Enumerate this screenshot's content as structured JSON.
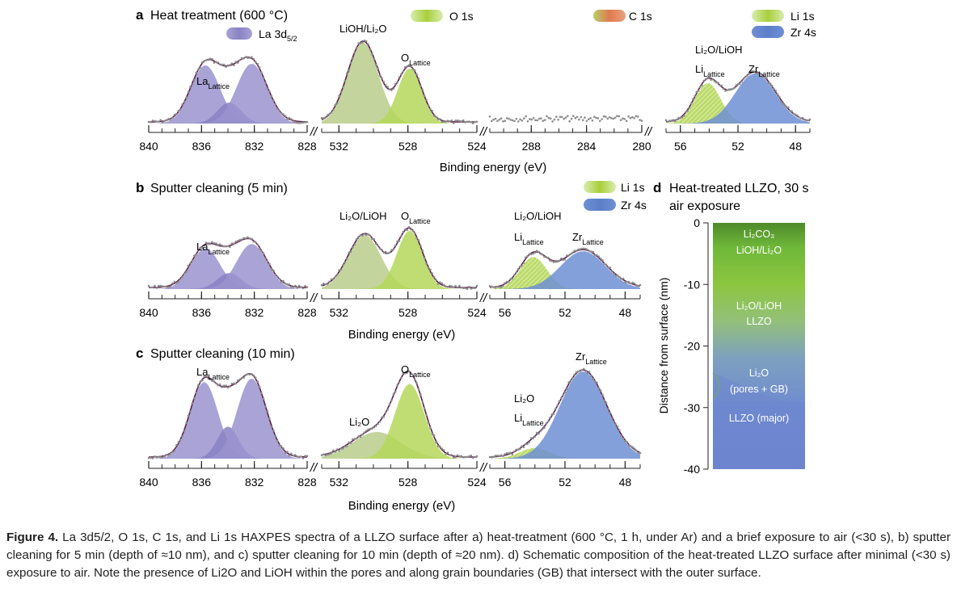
{
  "panels": {
    "a": {
      "letter": "a",
      "title": "Heat treatment (600 °C)"
    },
    "b": {
      "letter": "b",
      "title": "Sputter cleaning (5 min)"
    },
    "c": {
      "letter": "c",
      "title": "Sputter cleaning (10 min)"
    },
    "d": {
      "letter": "d",
      "title_line1": "Heat-treated LLZO, 30 s",
      "title_line2": "air exposure"
    }
  },
  "legend": {
    "la": {
      "label": "La 3d",
      "sub": "5/2",
      "color": "#8a82c4"
    },
    "o": {
      "label": "O 1s",
      "color": "#a8cf3a"
    },
    "c": {
      "label": "C 1s",
      "color": "#e07a4f"
    },
    "li": {
      "label": "Li 1s",
      "color": "#a8cf3a"
    },
    "zr": {
      "label": "Zr 4s",
      "color": "#5b7fc8"
    }
  },
  "labels": {
    "la_main": "La",
    "la_sub": "Lattice",
    "o_main": "O",
    "o_sub": "Lattice",
    "li_main": "Li",
    "li_sub": "Lattice",
    "zr_main": "Zr",
    "zr_sub": "Lattice",
    "lioh_li2o": "LiOH/Li₂O",
    "li2o_lioh": "Li₂O/LiOH",
    "li2o": "Li₂O"
  },
  "axes": {
    "xlabel": "Binding energy (eV)",
    "break_mark": "//"
  },
  "chart_data": {
    "type": "line",
    "xlabel": "Binding energy (eV)",
    "regions": [
      {
        "name": "La 3d5/2",
        "xlim": [
          840,
          828
        ],
        "ticks": [
          "840",
          "836",
          "832",
          "828"
        ]
      },
      {
        "name": "O 1s",
        "xlim": [
          533,
          524
        ],
        "ticks": [
          "532",
          "528",
          "524"
        ]
      },
      {
        "name": "C 1s",
        "xlim": [
          291,
          280
        ],
        "ticks": [
          "288",
          "284",
          "280"
        ]
      },
      {
        "name": "Li 1s / Zr 4s",
        "xlim": [
          57,
          47
        ],
        "ticks": [
          "56",
          "52",
          "48"
        ]
      }
    ],
    "spectra": {
      "a": {
        "La 3d5/2": [
          {
            "center": 835.7,
            "height": 0.72,
            "sigma": 1.1
          },
          {
            "center": 833.9,
            "height": 0.26,
            "sigma": 0.9
          },
          {
            "center": 832.2,
            "height": 0.74,
            "sigma": 1.15
          }
        ],
        "O 1s": [
          {
            "center": 530.6,
            "height": 1.0,
            "sigma": 0.9
          },
          {
            "center": 527.9,
            "height": 0.68,
            "sigma": 0.7
          }
        ],
        "C 1s": [],
        "Li 1s / Zr 4s": [
          {
            "center": 54.1,
            "height": 0.5,
            "sigma": 0.9
          },
          {
            "center": 50.8,
            "height": 0.62,
            "sigma": 1.4
          }
        ]
      },
      "b": {
        "La 3d5/2": [
          {
            "center": 835.7,
            "height": 0.56,
            "sigma": 1.1
          },
          {
            "center": 833.9,
            "height": 0.22,
            "sigma": 0.9
          },
          {
            "center": 832.2,
            "height": 0.62,
            "sigma": 1.15
          }
        ],
        "O 1s": [
          {
            "center": 530.5,
            "height": 0.74,
            "sigma": 0.95
          },
          {
            "center": 527.9,
            "height": 0.8,
            "sigma": 0.75
          }
        ],
        "Li 1s / Zr 4s": [
          {
            "center": 54.1,
            "height": 0.44,
            "sigma": 0.9
          },
          {
            "center": 50.8,
            "height": 0.52,
            "sigma": 1.5
          }
        ]
      },
      "c": {
        "La 3d5/2": [
          {
            "center": 835.8,
            "height": 0.86,
            "sigma": 1.05
          },
          {
            "center": 834.0,
            "height": 0.36,
            "sigma": 0.8
          },
          {
            "center": 832.2,
            "height": 0.9,
            "sigma": 1.1
          }
        ],
        "O 1s": [
          {
            "center": 529.8,
            "height": 0.3,
            "sigma": 1.4
          },
          {
            "center": 527.9,
            "height": 0.84,
            "sigma": 0.85
          }
        ],
        "Li 1s / Zr 4s": [
          {
            "center": 54.0,
            "height": 0.12,
            "sigma": 1.0
          },
          {
            "center": 50.8,
            "height": 0.98,
            "sigma": 1.55
          }
        ]
      }
    },
    "schematic": {
      "ylabel": "Distance from surface (nm)",
      "ylim": [
        -40,
        0
      ],
      "ticks": [
        "0",
        "-10",
        "-20",
        "-30",
        "-40"
      ],
      "layers": [
        {
          "line1": "Li₂CO₃",
          "line2": "LiOH/Li₂O"
        },
        {
          "line1": "Li₂O/LiOH",
          "line2": "LLZO"
        },
        {
          "line1": "Li₂O",
          "line2": "(pores + GB)"
        },
        {
          "line1": "LLZO (major)"
        }
      ]
    }
  },
  "caption": {
    "fig_label": "Figure 4.",
    "text": "La 3d5/2, O 1s, C 1s, and Li 1s HAXPES spectra of a LLZO surface after a) heat-treatment (600 °C, 1 h, under Ar) and a brief exposure to air (<30 s), b) sputter cleaning for 5 min (depth of ≈10 nm), and c) sputter cleaning for 10 min (depth of ≈20 nm). d) Schematic composition of the heat-treated LLZO surface after minimal (<30 s) exposure to air. Note the presence of Li2O and LiOH within the pores and along grain boundaries (GB) that intersect with the outer surface."
  }
}
